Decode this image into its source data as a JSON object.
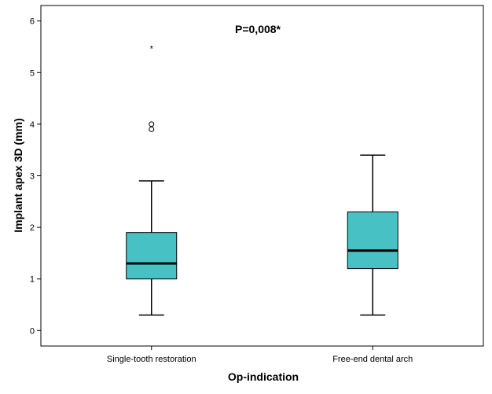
{
  "chart_data": {
    "type": "boxplot",
    "annotation": "P=0,008*",
    "xlabel": "Op-indication",
    "ylabel": "Implant apex 3D (mm)",
    "ylim": [
      -0.3,
      6.3
    ],
    "yticks": [
      "0",
      "1",
      "2",
      "3",
      "4",
      "5",
      "6"
    ],
    "categories": [
      "Single-tooth restoration",
      "Free-end dental arch"
    ],
    "box_color": "#47C1C4",
    "series": [
      {
        "whisker_low": 0.3,
        "q1": 1.0,
        "median": 1.3,
        "q3": 1.9,
        "whisker_high": 2.9,
        "outliers": [
          3.9,
          4.0
        ],
        "extremes": [
          5.5
        ]
      },
      {
        "whisker_low": 0.3,
        "q1": 1.2,
        "median": 1.55,
        "q3": 2.3,
        "whisker_high": 3.4,
        "outliers": [],
        "extremes": []
      }
    ],
    "grid": false,
    "legend": "none"
  }
}
